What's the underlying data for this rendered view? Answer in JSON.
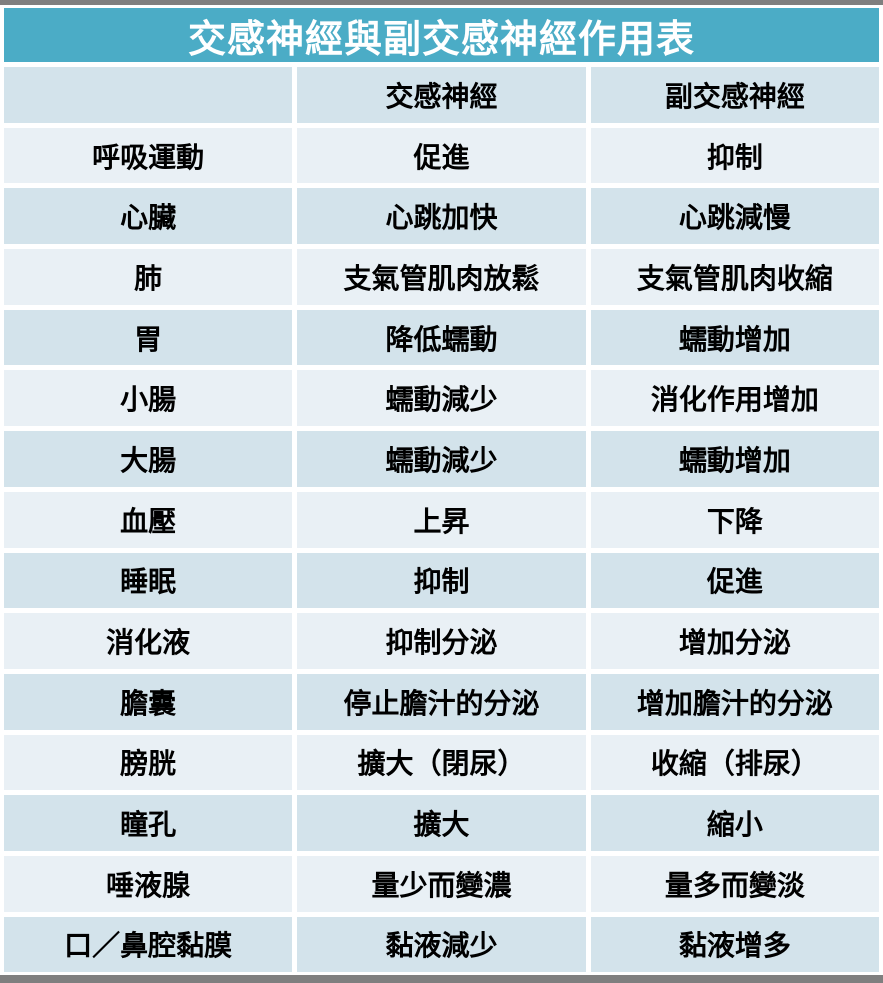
{
  "title": "交感神經與副交感神經作用表",
  "table": {
    "columns": [
      "",
      "交感神經",
      "副交感神經"
    ],
    "rows": [
      {
        "organ": "呼吸運動",
        "sympathetic": "促進",
        "parasympathetic": "抑制"
      },
      {
        "organ": "心臟",
        "sympathetic": "心跳加快",
        "parasympathetic": "心跳減慢"
      },
      {
        "organ": "肺",
        "sympathetic": "支氣管肌肉放鬆",
        "parasympathetic": "支氣管肌肉收縮"
      },
      {
        "organ": "胃",
        "sympathetic": "降低蠕動",
        "parasympathetic": "蠕動增加"
      },
      {
        "organ": "小腸",
        "sympathetic": "蠕動減少",
        "parasympathetic": "消化作用增加"
      },
      {
        "organ": "大腸",
        "sympathetic": "蠕動減少",
        "parasympathetic": "蠕動增加"
      },
      {
        "organ": "血壓",
        "sympathetic": "上昇",
        "parasympathetic": "下降"
      },
      {
        "organ": "睡眠",
        "sympathetic": "抑制",
        "parasympathetic": "促進"
      },
      {
        "organ": "消化液",
        "sympathetic": "抑制分泌",
        "parasympathetic": "增加分泌"
      },
      {
        "organ": "膽囊",
        "sympathetic": "停止膽汁的分泌",
        "parasympathetic": "增加膽汁的分泌"
      },
      {
        "organ": "膀胱",
        "sympathetic": "擴大（閉尿）",
        "parasympathetic": "收縮（排尿）"
      },
      {
        "organ": "瞳孔",
        "sympathetic": "擴大",
        "parasympathetic": "縮小"
      },
      {
        "organ": "唾液腺",
        "sympathetic": "量少而變濃",
        "parasympathetic": "量多而變淡"
      },
      {
        "organ": "口／鼻腔黏膜",
        "sympathetic": "黏液減少",
        "parasympathetic": "黏液增多"
      }
    ]
  },
  "colors": {
    "accent_teal": "#4BACC6",
    "row_dark": "#D3E3EB",
    "row_light": "#E9F0F5",
    "frame_gray": "#7F7F7F",
    "title_text": "#FFFFFF",
    "body_text": "#000000"
  }
}
